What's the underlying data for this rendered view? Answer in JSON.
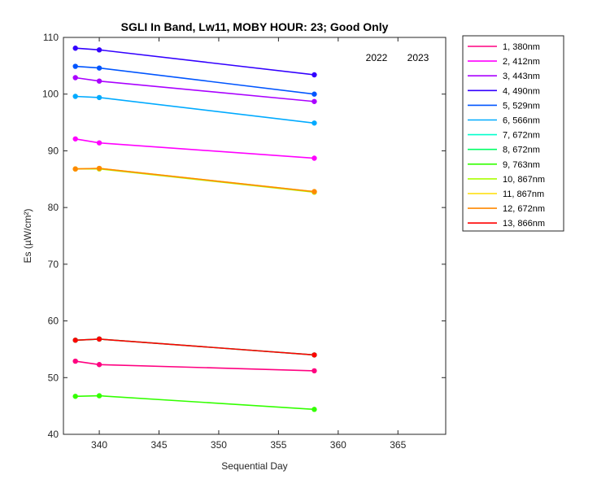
{
  "chart_data": {
    "type": "line",
    "title": "SGLI In Band,  Lw11, MOBY HOUR: 23;  Good Only",
    "xlabel": "Sequential Day",
    "ylabel": "Es (µW/cm²)",
    "xlim": [
      337,
      369
    ],
    "ylim": [
      40,
      110
    ],
    "xticks": [
      340,
      345,
      350,
      355,
      360,
      365
    ],
    "yticks": [
      40,
      50,
      60,
      70,
      80,
      90,
      100,
      110
    ],
    "grid": false,
    "legend_position": "outside-right",
    "year_labels": [
      "2022",
      "2023"
    ],
    "x": [
      338,
      340,
      358
    ],
    "series": [
      {
        "name": "1, 380nm",
        "color": "#ff0080",
        "values": [
          52.9,
          52.3,
          51.2
        ]
      },
      {
        "name": "2, 412nm",
        "color": "#ff00ff",
        "values": [
          92.1,
          91.4,
          88.7
        ]
      },
      {
        "name": "3, 443nm",
        "color": "#aa00ff",
        "values": [
          102.9,
          102.3,
          98.7
        ]
      },
      {
        "name": "4, 490nm",
        "color": "#3300ff",
        "values": [
          108.1,
          107.8,
          103.4
        ]
      },
      {
        "name": "5, 529nm",
        "color": "#0055ff",
        "values": [
          104.9,
          104.6,
          100.0
        ]
      },
      {
        "name": "6, 566nm",
        "color": "#00aaff",
        "values": [
          99.6,
          99.4,
          94.9
        ]
      },
      {
        "name": "7, 672nm",
        "color": "#00ffcc",
        "values": [
          56.6,
          56.8,
          54.0
        ]
      },
      {
        "name": "8, 672nm",
        "color": "#00ff66",
        "values": [
          56.6,
          56.8,
          54.0
        ]
      },
      {
        "name": "9, 763nm",
        "color": "#33ff00",
        "values": [
          46.7,
          46.8,
          44.4
        ]
      },
      {
        "name": "10, 867nm",
        "color": "#aaff00",
        "values": [
          86.8,
          86.8,
          82.7
        ]
      },
      {
        "name": "11, 867nm",
        "color": "#ffdd00",
        "values": [
          86.8,
          86.9,
          82.8
        ]
      },
      {
        "name": "12, 672nm",
        "color": "#ff8800",
        "values": [
          86.8,
          86.9,
          82.8
        ]
      },
      {
        "name": "13, 866nm",
        "color": "#ff0000",
        "values": [
          56.6,
          56.8,
          54.0
        ]
      }
    ]
  }
}
